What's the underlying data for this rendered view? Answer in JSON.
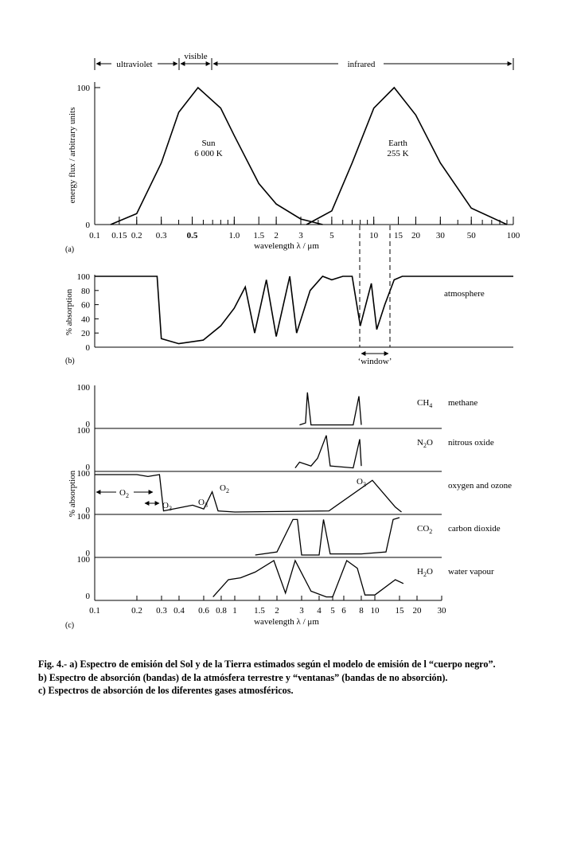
{
  "spectrum_bands": {
    "ultraviolet": "ultraviolet",
    "visible": "visible",
    "infrared": "infrared"
  },
  "chart_data": [
    {
      "panel_label": "(a)",
      "type": "line",
      "xscale": "log",
      "xlim": [
        0.1,
        100
      ],
      "ylim": [
        0,
        100
      ],
      "ylabel": "energy flux / arbitrary units",
      "xlabel": "wavelength λ / μm",
      "x_ticks": [
        "0.1",
        "0.15",
        "0.2",
        "0.3",
        "0.5",
        "1.0",
        "1.5",
        "2",
        "3",
        "5",
        "10",
        "15",
        "20",
        "30",
        "50",
        "100"
      ],
      "y_ticks": [
        "0",
        "100"
      ],
      "series": [
        {
          "name": "Sun",
          "subtitle": "6 000 K",
          "peak_x": 0.55,
          "peak_y": 100,
          "x": [
            0.13,
            0.2,
            0.3,
            0.4,
            0.55,
            0.8,
            1.0,
            1.5,
            2,
            3,
            4.3
          ],
          "y": [
            0,
            8,
            45,
            82,
            100,
            85,
            65,
            30,
            15,
            4,
            0
          ]
        },
        {
          "name": "Earth",
          "subtitle": "255 K",
          "peak_x": 14,
          "peak_y": 100,
          "x": [
            3.3,
            5,
            7,
            10,
            14,
            20,
            30,
            50,
            90
          ],
          "y": [
            0,
            10,
            45,
            85,
            100,
            80,
            45,
            12,
            0
          ]
        }
      ]
    },
    {
      "panel_label": "(b)",
      "type": "line",
      "xscale": "log",
      "xlim": [
        0.1,
        100
      ],
      "ylim": [
        0,
        100
      ],
      "ylabel": "% absorption",
      "y_ticks": [
        "0",
        "20",
        "40",
        "60",
        "80",
        "100"
      ],
      "series": [
        {
          "name": "atmosphere",
          "x": [
            0.1,
            0.28,
            0.3,
            0.4,
            0.6,
            0.8,
            1.0,
            1.2,
            1.4,
            1.7,
            2.0,
            2.5,
            2.8,
            3.5,
            4.3,
            5.0,
            6.0,
            7.0,
            8.0,
            9.6,
            10.5,
            12.0,
            14.0,
            16.0,
            20.0,
            100.0
          ],
          "y": [
            100,
            100,
            12,
            5,
            10,
            30,
            55,
            85,
            20,
            95,
            15,
            100,
            20,
            80,
            100,
            95,
            100,
            100,
            30,
            90,
            25,
            60,
            95,
            100,
            100,
            100
          ]
        }
      ],
      "annotation": "‘window’",
      "window_x": [
        8,
        13
      ]
    },
    {
      "panel_label": "(c)",
      "type": "line",
      "xscale": "log",
      "xlim": [
        0.1,
        30
      ],
      "ylim": [
        0,
        100
      ],
      "ylabel": "% absorption",
      "xlabel": "wavelength λ / μm",
      "x_ticks": [
        "0.1",
        "0.2",
        "0.3",
        "0.4",
        "0.6",
        "0.8",
        "1",
        "1.5",
        "2",
        "3",
        "4",
        "5",
        "6",
        "8",
        "10",
        "15",
        "20",
        "30"
      ],
      "y_ticks": [
        "0",
        "100"
      ],
      "series": [
        {
          "name": "methane",
          "formula": "CH4",
          "x": [
            2.9,
            3.2,
            3.3,
            3.5,
            7.0,
            7.7,
            8.0
          ],
          "y": [
            5,
            10,
            90,
            5,
            5,
            80,
            5
          ]
        },
        {
          "name": "nitrous oxide",
          "formula": "N2O",
          "x": [
            2.7,
            2.9,
            3.5,
            3.9,
            4.5,
            4.8,
            7.0,
            7.8,
            8.0
          ],
          "y": [
            5,
            20,
            10,
            30,
            90,
            10,
            5,
            80,
            10
          ]
        },
        {
          "name": "oxygen and ozone",
          "formula": "O2, O3",
          "x": [
            0.1,
            0.2,
            0.24,
            0.29,
            0.31,
            0.5,
            0.6,
            0.69,
            0.76,
            1.0,
            4.7,
            9.6,
            14,
            15.5
          ],
          "y": [
            100,
            100,
            95,
            100,
            5,
            20,
            10,
            55,
            5,
            2,
            5,
            85,
            15,
            2
          ]
        },
        {
          "name": "carbon dioxide",
          "formula": "CO2",
          "x": [
            1.4,
            2.0,
            2.6,
            2.8,
            3.0,
            4.0,
            4.3,
            4.8,
            8.0,
            12.0,
            13.5,
            15.0
          ],
          "y": [
            2,
            10,
            95,
            95,
            2,
            2,
            95,
            5,
            5,
            10,
            95,
            100
          ]
        },
        {
          "name": "water vapour",
          "formula": "H2O",
          "x": [
            0.7,
            0.9,
            1.1,
            1.4,
            1.9,
            2.3,
            2.7,
            3.5,
            4.5,
            5.0,
            6.3,
            7.5,
            8.5,
            10.0,
            14.0,
            16.0
          ],
          "y": [
            5,
            50,
            55,
            70,
            100,
            15,
            100,
            20,
            5,
            5,
            100,
            80,
            10,
            10,
            50,
            40
          ]
        }
      ],
      "annotations": [
        "O2",
        "O3",
        "O3",
        "O2",
        "O3"
      ]
    }
  ],
  "caption": {
    "line1": "Fig. 4.- a) Espectro de emisión del Sol y de la Tierra estimados según el modelo de emisión de l “cuerpo negro”.",
    "line2": " b) Espectro de absorción (bandas) de la atmósfera terrestre y “ventanas” (bandas de no absorción).",
    "line3": "c) Espectros de absorción de los diferentes gases atmosféricos."
  }
}
